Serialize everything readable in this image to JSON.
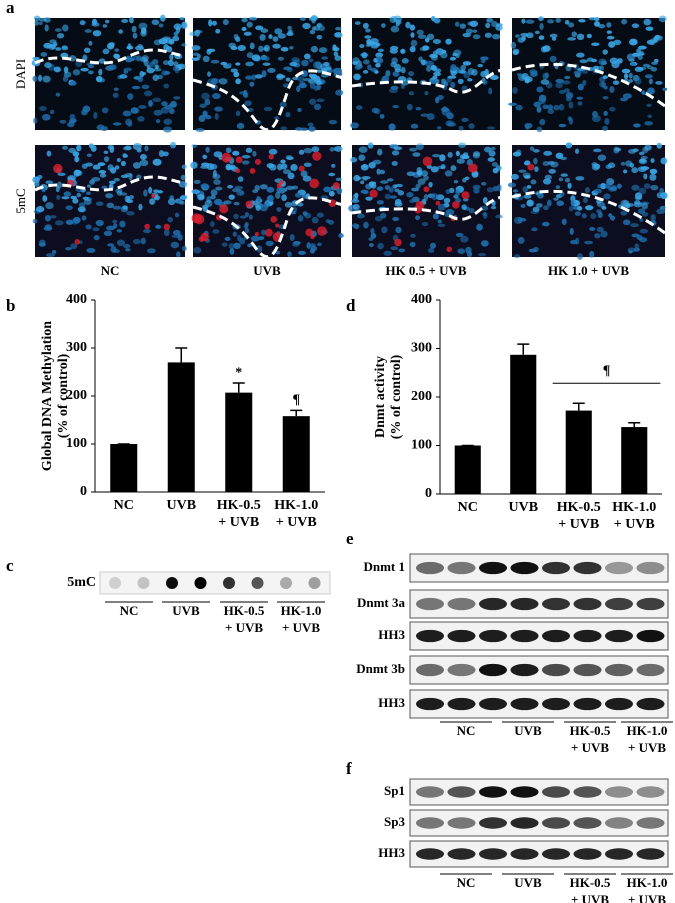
{
  "panels": {
    "a": {
      "label": "a",
      "rows": [
        "DAPI",
        "5mC"
      ],
      "columns": [
        "NC",
        "UVB",
        "HK 0.5 + UVB",
        "HK 1.0 + UVB"
      ]
    },
    "c": {
      "label": "c",
      "row": "5mC",
      "groups": [
        [
          "NC"
        ],
        [
          "UVB"
        ],
        [
          "HK-0.5",
          "+ UVB"
        ],
        [
          "HK-1.0",
          "+ UVB"
        ]
      ]
    },
    "e": {
      "label": "e",
      "rows": [
        "Dnmt 1",
        "Dnmt 3a",
        "HH3",
        "Dnmt 3b",
        "HH3"
      ],
      "groups": [
        [
          "NC"
        ],
        [
          "UVB"
        ],
        [
          "HK-0.5",
          "+ UVB"
        ],
        [
          "HK-1.0",
          "+ UVB"
        ]
      ]
    },
    "f": {
      "label": "f",
      "rows": [
        "Sp1",
        "Sp3",
        "HH3"
      ],
      "groups": [
        [
          "NC"
        ],
        [
          "UVB"
        ],
        [
          "HK-0.5",
          "+ UVB"
        ],
        [
          "HK-1.0",
          "+ UVB"
        ]
      ]
    }
  },
  "chart_data": [
    {
      "type": "bar",
      "label": "b",
      "ylabel": [
        "Global DNA Methylation",
        "(% of control)"
      ],
      "categories": [
        [
          "NC"
        ],
        [
          "UVB"
        ],
        [
          "HK-0.5",
          "+ UVB"
        ],
        [
          "HK-1.0",
          "+ UVB"
        ]
      ],
      "values": [
        100,
        270,
        207,
        158
      ],
      "errors": [
        0,
        30,
        20,
        12
      ],
      "color": "#000000",
      "ylim": [
        0,
        400
      ],
      "yticks": [
        0,
        100,
        200,
        300,
        400
      ],
      "grid": false,
      "annotations": [
        {
          "text": "*",
          "categories": [
            2
          ]
        },
        {
          "text": "¶",
          "categories": [
            3
          ]
        }
      ]
    },
    {
      "type": "bar",
      "label": "d",
      "ylabel": [
        "Dnmt activity",
        "(% of control)"
      ],
      "categories": [
        [
          "NC"
        ],
        [
          "UVB"
        ],
        [
          "HK-0.5",
          "+ UVB"
        ],
        [
          "HK-1.0",
          "+ UVB"
        ]
      ],
      "values": [
        100,
        287,
        172,
        138
      ],
      "errors": [
        0,
        22,
        15,
        9
      ],
      "color": "#000000",
      "ylim": [
        0,
        400
      ],
      "yticks": [
        0,
        100,
        200,
        300,
        400
      ],
      "grid": false,
      "annotations": [
        {
          "text": "¶",
          "categories": [
            2,
            3
          ]
        }
      ]
    }
  ]
}
